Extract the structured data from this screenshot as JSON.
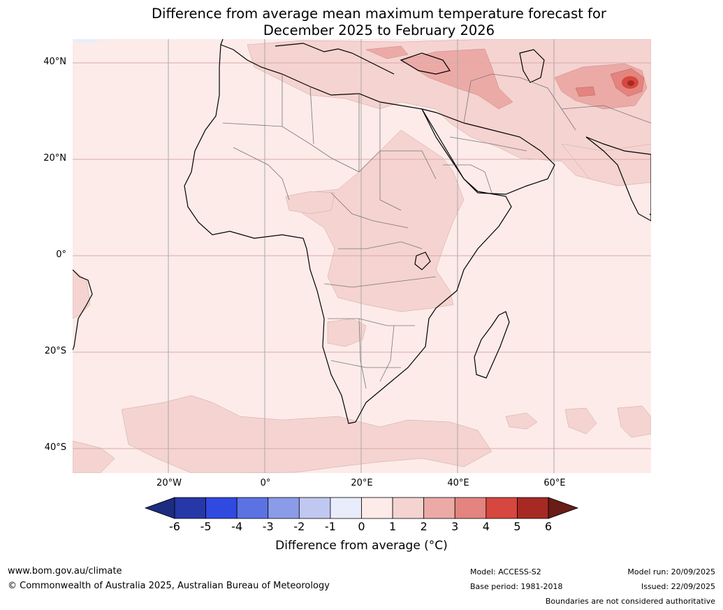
{
  "title": {
    "line1": "Difference from average mean maximum temperature forecast for",
    "line2": "December 2025 to February 2026"
  },
  "map": {
    "region": "Africa, Middle East and South Asia",
    "lat_ticks": [
      "40°N",
      "20°N",
      "0°",
      "20°S",
      "40°S"
    ],
    "lon_ticks": [
      "20°W",
      "0°",
      "20°E",
      "40°E",
      "60°E"
    ],
    "colors": {
      "bin_0_1": "#fcebe9",
      "bin_1_2": "#f5d3d0",
      "bin_2_3": "#ecaaa6",
      "bin_3_4": "#e3847e",
      "bin_4_5": "#d6473f",
      "bin_5_6": "#a62a23",
      "bin_neg1_0": "#e9ecfa",
      "gridline": "#d9aaa8",
      "border": "#777777",
      "coast": "#000000"
    }
  },
  "colorbar": {
    "title": "Difference from average (°C)",
    "ticks": [
      "-6",
      "-5",
      "-4",
      "-3",
      "-2",
      "-1",
      "0",
      "1",
      "2",
      "3",
      "4",
      "5",
      "6"
    ],
    "bins": [
      {
        "range": "< -6",
        "color": "#1c2c80"
      },
      {
        "range": "-6 to -5",
        "color": "#2637a8"
      },
      {
        "range": "-5 to -4",
        "color": "#3049e0"
      },
      {
        "range": "-4 to -3",
        "color": "#5b72e3"
      },
      {
        "range": "-3 to -2",
        "color": "#8a9be8"
      },
      {
        "range": "-2 to -1",
        "color": "#c0c8f2"
      },
      {
        "range": "-1 to 0",
        "color": "#e9ecfa"
      },
      {
        "range": "0 to 1",
        "color": "#fcebe9"
      },
      {
        "range": "1 to 2",
        "color": "#f5d3d0"
      },
      {
        "range": "2 to 3",
        "color": "#ecaaa6"
      },
      {
        "range": "3 to 4",
        "color": "#e3847e"
      },
      {
        "range": "4 to 5",
        "color": "#d6473f"
      },
      {
        "range": "5 to 6",
        "color": "#a62a23"
      },
      {
        "range": "> 6",
        "color": "#6a1c16"
      }
    ]
  },
  "footer": {
    "website": "www.bom.gov.au/climate",
    "copyright": "© Commonwealth of Australia 2025, Australian Bureau of Meteorology",
    "model": "Model: ACCESS-S2",
    "base_period": "Base period: 1981-2018",
    "model_run": "Model run: 20/09/2025",
    "issued": "Issued: 22/09/2025",
    "disclaimer": "Boundaries are not considered authoritative"
  }
}
